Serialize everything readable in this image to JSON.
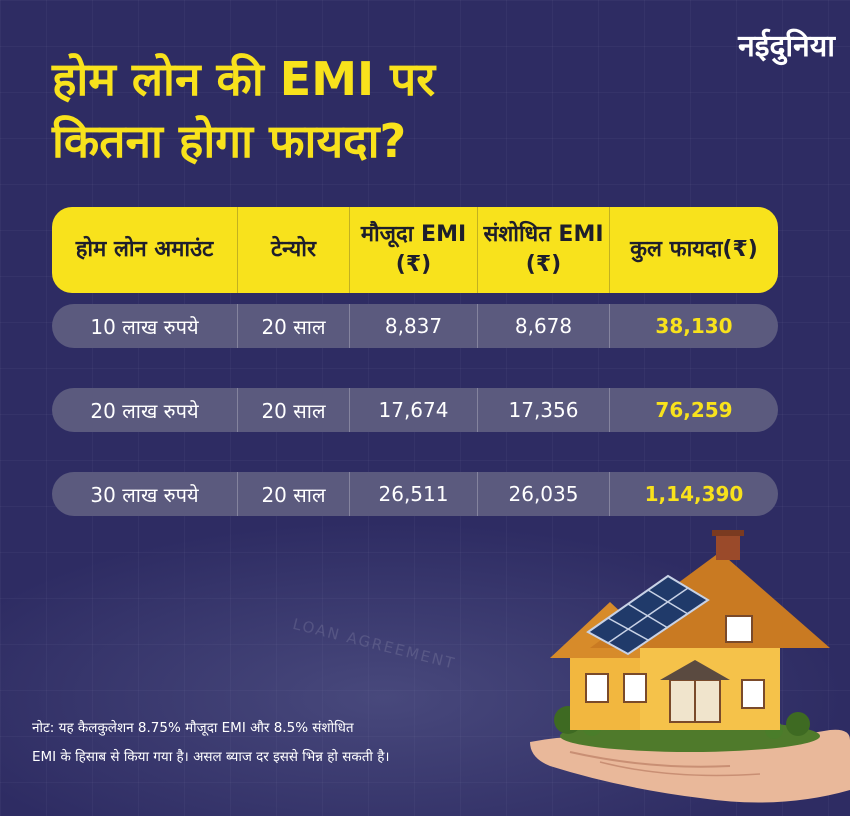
{
  "logo": "नईदुनिया",
  "headline": {
    "line1": "होम लोन की EMI पर",
    "line2": "कितना होगा फायदा?"
  },
  "table": {
    "headers": [
      "होम लोन अमाउंट",
      "टेन्योर",
      "मौजूदा EMI (₹)",
      "संशोधित EMI (₹)",
      "कुल फायदा(₹)"
    ],
    "rows": [
      {
        "amount": "10 लाख रुपये",
        "tenure": "20 साल",
        "current_emi": "8,837",
        "revised_emi": "8,678",
        "benefit": "38,130"
      },
      {
        "amount": "20 लाख रुपये",
        "tenure": "20 साल",
        "current_emi": "17,674",
        "revised_emi": "17,356",
        "benefit": "76,259"
      },
      {
        "amount": "30 लाख रुपये",
        "tenure": "20 साल",
        "current_emi": "26,511",
        "revised_emi": "26,035",
        "benefit": "1,14,390"
      }
    ]
  },
  "note": {
    "line1": "नोट: यह कैलकुलेशन 8.75% मौजूदा EMI और 8.5% संशोधित",
    "line2": "EMI के हिसाब से किया गया है। असल ब्याज दर इससे भिन्न हो सकती है।"
  },
  "background_text": "LOAN AGREEMENT",
  "colors": {
    "background": "#2e2c63",
    "accent_yellow": "#f8e21c",
    "row_fill": "#5b5a7e"
  },
  "icons": [
    "house-on-hand-illustration",
    "solar-panel-icon"
  ]
}
